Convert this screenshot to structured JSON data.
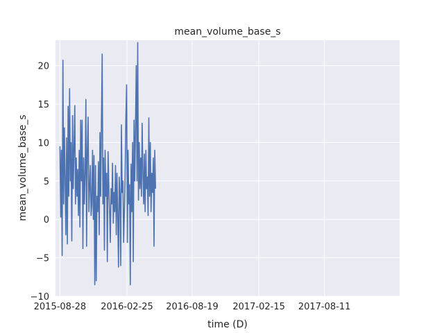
{
  "chart_data": {
    "type": "line",
    "title": "mean_volume_base_s",
    "xlabel": "time (D)",
    "ylabel": "mean_volume_base_s",
    "x_range": [
      "2015-08-16",
      "2018-03-02"
    ],
    "ylim": [
      -10,
      23.3
    ],
    "grid": true,
    "x_ticks": [
      {
        "date": "2015-08-28",
        "label": "2015-08-28"
      },
      {
        "date": "2016-02-25",
        "label": "2016-02-25"
      },
      {
        "date": "2016-08-19",
        "label": "2016-08-19"
      },
      {
        "date": "2017-02-15",
        "label": "2017-02-15"
      },
      {
        "date": "2017-08-11",
        "label": "2017-08-11"
      }
    ],
    "y_ticks": [
      {
        "value": -10,
        "label": "−10"
      },
      {
        "value": -5,
        "label": "−5"
      },
      {
        "value": 0,
        "label": "0"
      },
      {
        "value": 5,
        "label": "5"
      },
      {
        "value": 10,
        "label": "10"
      },
      {
        "value": 15,
        "label": "15"
      },
      {
        "value": 20,
        "label": "20"
      }
    ],
    "series": [
      {
        "name": "mean_volume_base_s",
        "color": "#4c72b0",
        "start_date": "2015-08-28",
        "step_days": 2,
        "values": [
          9.5,
          0.3,
          9.0,
          -4.7,
          20.7,
          2.0,
          11.9,
          4.8,
          -2.0,
          10.6,
          -3.2,
          14.7,
          3.0,
          17.0,
          5.0,
          10.0,
          -2.8,
          13.5,
          4.0,
          9.3,
          14.8,
          2.0,
          8.0,
          3.0,
          6.5,
          0.5,
          9.0,
          -1.0,
          12.9,
          5.0,
          12.9,
          -3.8,
          8.0,
          2.0,
          6.0,
          15.6,
          -3.5,
          9.0,
          13.3,
          1.0,
          4.0,
          7.0,
          0.5,
          2.0,
          9.0,
          0.0,
          8.3,
          -8.5,
          7.0,
          -8.0,
          3.0,
          1.0,
          7.5,
          -2.0,
          11.3,
          3.0,
          12.5,
          21.5,
          2.0,
          8.0,
          -4.0,
          9.0,
          3.0,
          6.0,
          -5.5,
          8.8,
          4.0,
          1.0,
          -3.0,
          4.0,
          2.0,
          7.3,
          -0.5,
          3.5,
          1.0,
          7.0,
          -2.0,
          6.0,
          0.5,
          -6.2,
          5.5,
          3.0,
          -6.0,
          12.3,
          3.5,
          5.0,
          -3.0,
          1.0,
          6.0,
          13.0,
          17.5,
          -3.0,
          9.0,
          2.0,
          4.5,
          -8.5,
          7.2,
          1.0,
          10.0,
          -5.5,
          12.9,
          5.0,
          12.0,
          20.0,
          5.0,
          23.0,
          2.5,
          10.0,
          4.0,
          8.0,
          3.0,
          12.5,
          6.0,
          2.0,
          8.5,
          1.0,
          9.0,
          4.0,
          5.5,
          0.5,
          13.2,
          3.0,
          10.0,
          1.0,
          6.0,
          3.5,
          8.0,
          -3.5,
          9.0,
          4.0
        ]
      }
    ]
  }
}
